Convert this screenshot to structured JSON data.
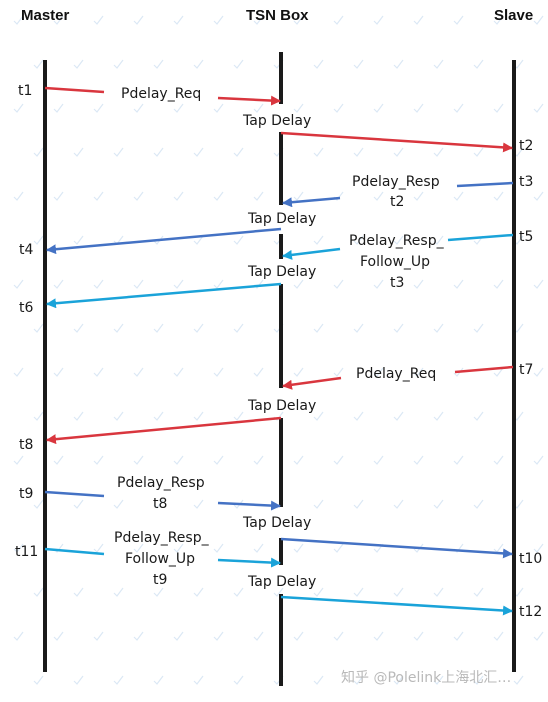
{
  "headers": {
    "master": "Master",
    "tsn_box": "TSN Box",
    "slave": "Slave"
  },
  "timestamps": {
    "t1": "t1",
    "t2": "t2",
    "t3": "t3",
    "t4": "t4",
    "t5": "t5",
    "t6": "t6",
    "t7": "t7",
    "t8": "t8",
    "t9": "t9",
    "t10": "t10",
    "t11": "t11",
    "t12": "t12"
  },
  "messages": {
    "pdelay_req_1": "Pdelay_Req",
    "pdelay_resp_t2_line1": "Pdelay_Resp",
    "pdelay_resp_t2_line2": "t2",
    "follow_up_t3_line1": "Pdelay_Resp_",
    "follow_up_t3_line2": "Follow_Up",
    "follow_up_t3_line3": "t3",
    "pdelay_req_2": "Pdelay_Req",
    "pdelay_resp_t8_line1": "Pdelay_Resp",
    "pdelay_resp_t8_line2": "t8",
    "follow_up_t9_line1": "Pdelay_Resp_",
    "follow_up_t9_line2": "Follow_Up",
    "follow_up_t9_line3": "t9"
  },
  "tap_delay": "Tap Delay",
  "watermark": "知乎 @Polelink上海北汇…",
  "colors": {
    "red": "#d9363e",
    "blue": "#4472c4",
    "cyan": "#1aa3d9",
    "line": "#1a1a1a"
  }
}
